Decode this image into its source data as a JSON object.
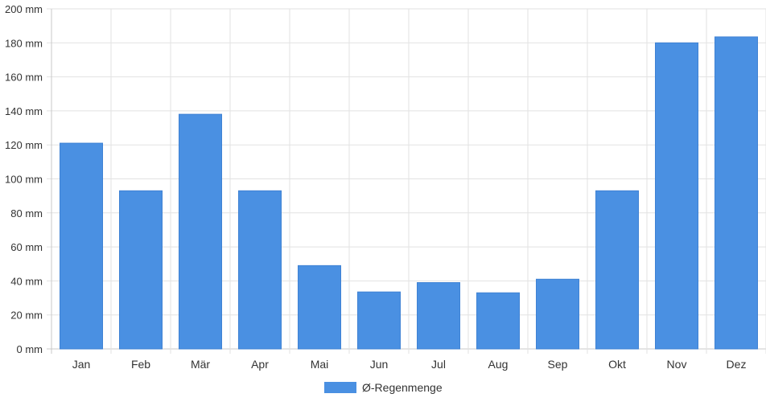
{
  "chart_data": {
    "type": "bar",
    "categories": [
      "Jan",
      "Feb",
      "Mär",
      "Apr",
      "Mai",
      "Jun",
      "Jul",
      "Aug",
      "Sep",
      "Okt",
      "Nov",
      "Dez"
    ],
    "series": [
      {
        "name": "Ø-Regenmenge",
        "color": "#4a90e2",
        "values": [
          121,
          93,
          138,
          93,
          49,
          33.5,
          39,
          33,
          41,
          93,
          180,
          183.5
        ]
      }
    ],
    "y_ticks": [
      "0 mm",
      "20 mm",
      "40 mm",
      "60 mm",
      "80 mm",
      "100 mm",
      "120 mm",
      "140 mm",
      "160 mm",
      "180 mm",
      "200 mm"
    ],
    "ylim": [
      0,
      200
    ],
    "y_unit": "mm",
    "grid": true,
    "legend_position": "bottom-center",
    "title": "",
    "xlabel": "",
    "ylabel": ""
  }
}
